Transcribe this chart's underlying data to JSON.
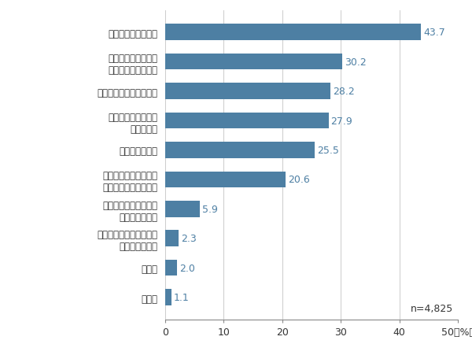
{
  "categories": [
    "無回答",
    "その他",
    "将来・老後の生活資金は\n十分持っている",
    "周りに証券投資をして\nいる人がいない",
    "証券投資をするための\nまとまった資金がない",
    "特に理由はない",
    "価格の変動に神経を\n使うのが嫌",
    "ギャンブルのようなもの",
    "金融や投資に関する\n知識を持っていない",
    "損する可能性がある"
  ],
  "values": [
    1.1,
    2.0,
    2.3,
    5.9,
    20.6,
    25.5,
    27.9,
    28.2,
    30.2,
    43.7
  ],
  "bar_color": "#4d7fa3",
  "value_color": "#4d7fa3",
  "background_color": "#ffffff",
  "xlim": [
    0,
    50
  ],
  "xticks": [
    0,
    10,
    20,
    30,
    40,
    50
  ],
  "xlabel": "50（%）",
  "n_label": "n=4,825",
  "bar_height": 0.55,
  "figsize": [
    6.0,
    4.52
  ],
  "dpi": 100,
  "label_fontsize": 8.5,
  "value_fontsize": 9.0,
  "tick_fontsize": 9.0
}
